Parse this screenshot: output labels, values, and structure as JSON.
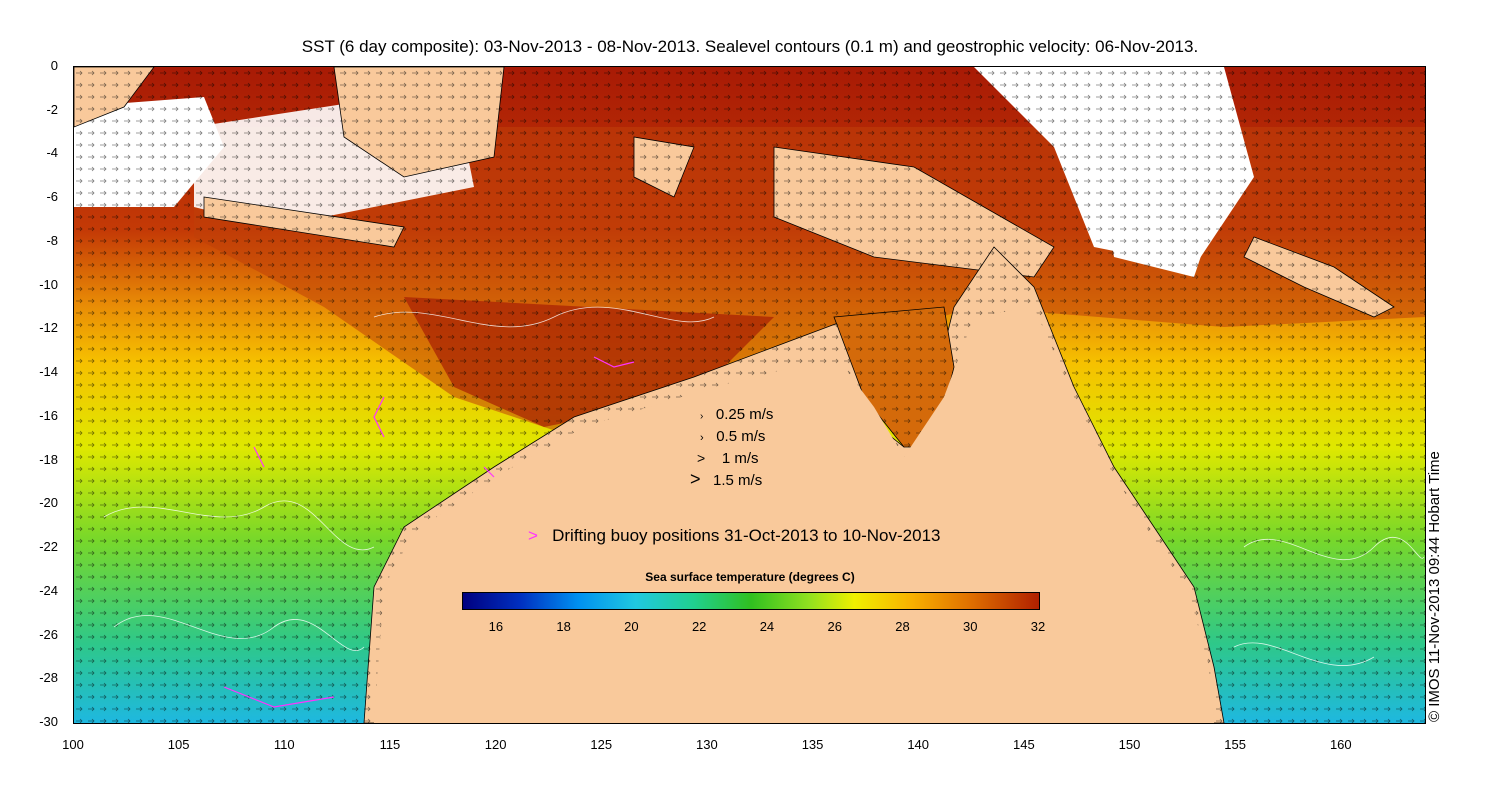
{
  "title": "SST (6 day composite): 03-Nov-2013 - 08-Nov-2013. Sealevel contours (0.1 m) and geostrophic velocity: 06-Nov-2013.",
  "y_ticks": [
    "0",
    "-2",
    "-4",
    "-6",
    "-8",
    "-10",
    "-12",
    "-14",
    "-16",
    "-18",
    "-20",
    "-22",
    "-24",
    "-26",
    "-28",
    "-30"
  ],
  "x_ticks": [
    "100",
    "105",
    "110",
    "115",
    "120",
    "125",
    "130",
    "135",
    "140",
    "145",
    "150",
    "155",
    "160"
  ],
  "velocity_legend": [
    {
      "label": "0.25 m/s",
      "speed": 0.25
    },
    {
      "label": "0.5 m/s",
      "speed": 0.5
    },
    {
      "label": "1 m/s",
      "speed": 1
    },
    {
      "label": "1.5 m/s",
      "speed": 1.5
    }
  ],
  "buoy_legend": {
    "label": "Drifting buoy positions 31-Oct-2013 to 10-Nov-2013",
    "color": "#ff33ff"
  },
  "colorbar": {
    "title": "Sea surface temperature (degrees C)",
    "ticks": [
      "16",
      "18",
      "20",
      "22",
      "24",
      "26",
      "28",
      "30",
      "32"
    ],
    "range": [
      15,
      32
    ]
  },
  "credit": "© IMOS 11-Nov-2013 09:44 Hobart Time",
  "colors": {
    "land": "#f9c99b",
    "hot": "#a81a05",
    "warm": "#e07a06",
    "mid": "#f5c800",
    "cool": "#5fd02a",
    "cold": "#1ec8d0"
  }
}
